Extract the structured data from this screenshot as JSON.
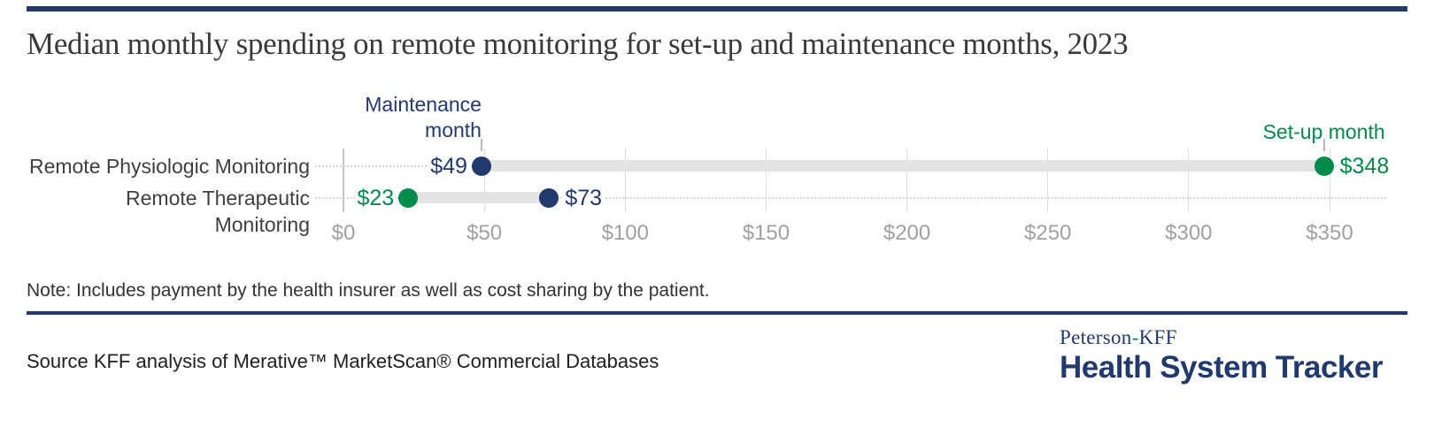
{
  "title": "Median monthly spending on remote monitoring for set-up and maintenance months, 2023",
  "note": "Note: Includes payment by the health insurer as well as cost sharing by the patient.",
  "source": "Source KFF analysis of Merative™ MarketScan® Commercial Databases",
  "logo": {
    "line1_left": "Peterson",
    "hyphen": "-",
    "line1_right": "KFF",
    "line2": "Health System Tracker"
  },
  "colors": {
    "navy": "#223a6b",
    "green": "#008b4a",
    "bar": "#e3e3e3",
    "gridline": "#dedede",
    "zero_gridline": "#c3c3c3",
    "axis_label": "#a0a0a0",
    "row_label": "#404040",
    "title_text": "#3a3a3a"
  },
  "chart_data": {
    "type": "dumbbell",
    "title": "Median monthly spending on remote monitoring for set-up and maintenance months, 2023",
    "xlabel": "",
    "ylabel": "",
    "xlim": [
      0,
      350
    ],
    "grid": "vertical",
    "x_ticks": [
      {
        "label": "$0",
        "value": 0
      },
      {
        "label": "$50",
        "value": 50
      },
      {
        "label": "$100",
        "value": 100
      },
      {
        "label": "$150",
        "value": 150
      },
      {
        "label": "$200",
        "value": 200
      },
      {
        "label": "$250",
        "value": 250
      },
      {
        "label": "$300",
        "value": 300
      },
      {
        "label": "$350",
        "value": 350
      }
    ],
    "series_legend": [
      {
        "name": "Maintenance month",
        "series": "maintenance",
        "color": "#223a6b"
      },
      {
        "name": "Set-up month",
        "series": "setup",
        "color": "#008b4a"
      }
    ],
    "rows": [
      {
        "category": "Remote Physiologic Monitoring",
        "points": [
          {
            "series": "maintenance",
            "value": 49,
            "label": "$49",
            "label_side": "left"
          },
          {
            "series": "setup",
            "value": 348,
            "label": "$348",
            "label_side": "right"
          }
        ]
      },
      {
        "category": "Remote Therapeutic Monitoring",
        "points": [
          {
            "series": "setup",
            "value": 23,
            "label": "$23",
            "label_side": "left"
          },
          {
            "series": "maintenance",
            "value": 73,
            "label": "$73",
            "label_side": "right"
          }
        ]
      }
    ],
    "annotations": [
      {
        "text": "Maintenance\nmonth",
        "series": "maintenance",
        "anchor_value": 49,
        "align": "right"
      },
      {
        "text": "Set-up month",
        "series": "setup",
        "anchor_value": 348,
        "align": "center"
      }
    ]
  }
}
